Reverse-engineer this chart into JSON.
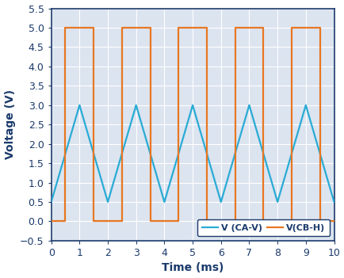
{
  "title": "",
  "xlabel": "Time (ms)",
  "ylabel": "Voltage (V)",
  "xlim": [
    0,
    10
  ],
  "ylim": [
    -0.5,
    5.5
  ],
  "xticks": [
    0,
    1,
    2,
    3,
    4,
    5,
    6,
    7,
    8,
    9,
    10
  ],
  "yticks": [
    -0.5,
    0.0,
    0.5,
    1.0,
    1.5,
    2.0,
    2.5,
    3.0,
    3.5,
    4.0,
    4.5,
    5.0,
    5.5
  ],
  "triangle_color": "#29ABD4",
  "square_color": "#E87722",
  "legend_labels": [
    "V (CA-V)",
    "V(CB-H)"
  ],
  "background_color": "#FFFFFF",
  "plot_bg_color": "#DCE4F0",
  "grid_color": "#FFFFFF",
  "triangle_peak": 3.0,
  "triangle_trough": 0.5,
  "triangle_start": 0.5,
  "square_high": 5.0,
  "square_low": 0.0,
  "square_high_start": 0.5,
  "square_high_end": 1.5,
  "period_ms": 2.0,
  "total_time_ms": 10.0,
  "line_width": 1.6,
  "spine_color": "#1a3a6b",
  "label_color": "#1a3a6b",
  "tick_fontsize": 9,
  "label_fontsize": 10
}
